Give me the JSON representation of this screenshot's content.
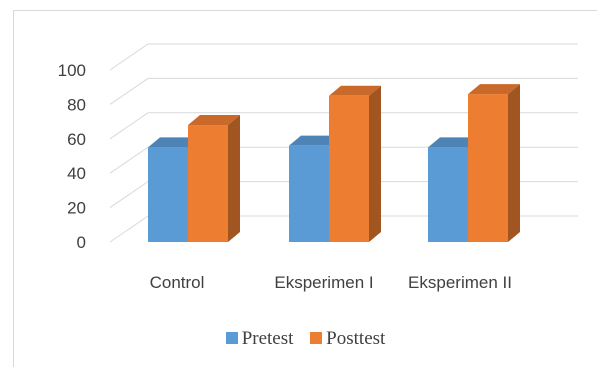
{
  "chart_data": {
    "type": "bar",
    "style": "3d-clustered-column",
    "categories": [
      "Control",
      "Eksperimen I",
      "Eksperimen II"
    ],
    "series": [
      {
        "name": "Pretest",
        "color": "#5b9bd5",
        "values": [
          55,
          56,
          55
        ]
      },
      {
        "name": "Posttest",
        "color": "#ed7d31",
        "values": [
          68,
          85,
          86
        ]
      }
    ],
    "y_ticks": [
      "0",
      "20",
      "40",
      "60",
      "80",
      "100"
    ],
    "ylim": [
      0,
      100
    ],
    "grid": true,
    "legend_position": "bottom"
  }
}
